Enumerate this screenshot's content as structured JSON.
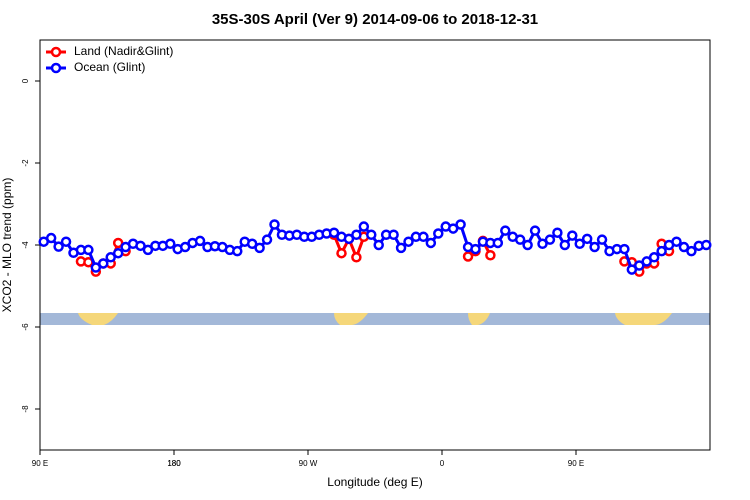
{
  "chart_data": {
    "type": "line",
    "title": "35S-30S April (Ver 9)   2014-09-06 to 2018-12-31",
    "xlabel": "Longitude (deg E)",
    "ylabel": "XCO2 - MLO trend (ppm)",
    "x": [
      92.5,
      97.5,
      102.5,
      107.5,
      112.5,
      117.5,
      122.5,
      127.5,
      132.5,
      137.5,
      142.5,
      147.5,
      152.5,
      157.5,
      162.5,
      167.5,
      172.5,
      177.5,
      182.5,
      187.5,
      192.5,
      197.5,
      202.5,
      207.5,
      212.5,
      217.5,
      222.5,
      227.5,
      232.5,
      237.5,
      242.5,
      247.5,
      252.5,
      257.5,
      262.5,
      267.5,
      272.5,
      277.5,
      282.5,
      287.5,
      292.5,
      297.5,
      302.5,
      307.5,
      312.5,
      317.5,
      322.5,
      327.5,
      332.5,
      337.5,
      342.5,
      347.5,
      352.5,
      357.5,
      362.5,
      367.5,
      372.5,
      377.5,
      382.5,
      387.5,
      392.5,
      397.5,
      402.5,
      407.5,
      412.5,
      417.5,
      422.5,
      427.5,
      432.5,
      437.5,
      442.5,
      447.5,
      452.5,
      457.5,
      462.5,
      467.5,
      472.5,
      477.5,
      482.5,
      487.5,
      492.5,
      497.5,
      502.5,
      507.5,
      512.5,
      517.5,
      522.5,
      527.5,
      532.5,
      537.5
    ],
    "series": [
      {
        "name": "Land (Nadir&Glint)",
        "color": "#ff0000",
        "values": [
          null,
          null,
          null,
          null,
          null,
          -4.4,
          -4.42,
          -4.65,
          -4.45,
          -4.45,
          -3.95,
          -4.15,
          null,
          null,
          null,
          null,
          null,
          null,
          null,
          null,
          null,
          null,
          null,
          null,
          null,
          null,
          null,
          null,
          null,
          null,
          null,
          null,
          null,
          null,
          null,
          null,
          null,
          null,
          null,
          -3.75,
          -4.2,
          -3.85,
          -4.3,
          -3.8,
          null,
          null,
          null,
          null,
          null,
          null,
          null,
          null,
          null,
          null,
          null,
          null,
          null,
          -4.28,
          -4.15,
          -3.9,
          -4.25,
          null,
          null,
          null,
          null,
          null,
          null,
          null,
          null,
          null,
          null,
          null,
          null,
          null,
          null,
          null,
          null,
          null,
          -4.4,
          -4.42,
          -4.65,
          -4.45,
          -4.45,
          -3.97,
          -4.15,
          null,
          null,
          null,
          null,
          null
        ]
      },
      {
        "name": "Ocean (Glint)",
        "color": "#0000ff",
        "values": [
          -3.92,
          -3.83,
          -4.04,
          -3.92,
          -4.19,
          -4.12,
          -4.12,
          -4.55,
          -4.45,
          -4.3,
          -4.2,
          -4.05,
          -3.97,
          -4.02,
          -4.12,
          -4.02,
          -4.02,
          -3.97,
          -4.1,
          -4.05,
          -3.95,
          -3.9,
          -4.05,
          -4.03,
          -4.05,
          -4.12,
          -4.15,
          -3.92,
          -3.97,
          -4.07,
          -3.87,
          -3.5,
          -3.75,
          -3.77,
          -3.75,
          -3.8,
          -3.8,
          -3.75,
          -3.72,
          -3.7,
          -3.8,
          -3.85,
          -3.75,
          -3.55,
          -3.75,
          -4.0,
          -3.75,
          -3.75,
          -4.07,
          -3.92,
          -3.8,
          -3.8,
          -3.95,
          -3.72,
          -3.55,
          -3.6,
          -3.5,
          -4.05,
          -4.1,
          -3.92,
          -3.95,
          -3.95,
          -3.65,
          -3.8,
          -3.87,
          -4.0,
          -3.65,
          -3.97,
          -3.87,
          -3.7,
          -4.0,
          -3.77,
          -3.97,
          -3.85,
          -4.05,
          -3.87,
          -4.15,
          -4.1,
          -4.1,
          -4.6,
          -4.5,
          -4.4,
          -4.3,
          -4.15,
          -4.0,
          -3.92,
          -4.05,
          -4.15,
          -4.02,
          -4.0
        ]
      }
    ],
    "xlim": [
      90,
      540
    ],
    "xticks": [
      {
        "value": 90,
        "label": "90 E"
      },
      180,
      {
        "value": 270,
        "label": "90 W"
      },
      {
        "value": 360,
        "label": "0"
      },
      {
        "value": 450,
        "label": "90 E"
      },
      180.0001
    ],
    "ylim": [
      -9,
      1
    ],
    "yticks": [
      0,
      -2,
      -4,
      -6,
      -8
    ],
    "legend": "topleft"
  }
}
